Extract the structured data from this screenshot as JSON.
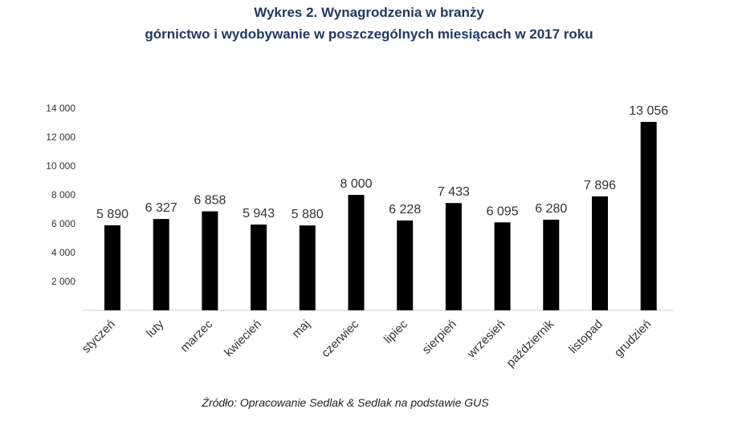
{
  "chart_data": {
    "type": "bar",
    "title": "Wykres 2. Wynagrodzenia w branży",
    "subtitle": "górnictwo i wydobywanie w poszczególnych miesiącach w 2017 roku",
    "categories": [
      "styczeń",
      "luty",
      "marzec",
      "kwiecień",
      "maj",
      "czerwiec",
      "lipiec",
      "sierpień",
      "wrzesień",
      "październik",
      "listopad",
      "grudzień"
    ],
    "values": [
      5890,
      6327,
      6858,
      5943,
      5880,
      8000,
      6228,
      7433,
      6095,
      6280,
      7896,
      13056
    ],
    "value_labels": [
      "5 890",
      "6 327",
      "6 858",
      "5 943",
      "5 880",
      "8 000",
      "6 228",
      "7 433",
      "6 095",
      "6 280",
      "7 896",
      "13 056"
    ],
    "ylim": [
      0,
      14000
    ],
    "yticks": [
      2000,
      4000,
      6000,
      8000,
      10000,
      12000,
      14000
    ],
    "ytick_labels": [
      "2 000",
      "4 000",
      "6 000",
      "8 000",
      "10 000",
      "12 000",
      "14 000"
    ],
    "grid": false,
    "bar_color": "#000000",
    "xlabel": "",
    "ylabel": ""
  },
  "source": "Źródło: Opracowanie Sedlak & Sedlak na podstawie GUS"
}
